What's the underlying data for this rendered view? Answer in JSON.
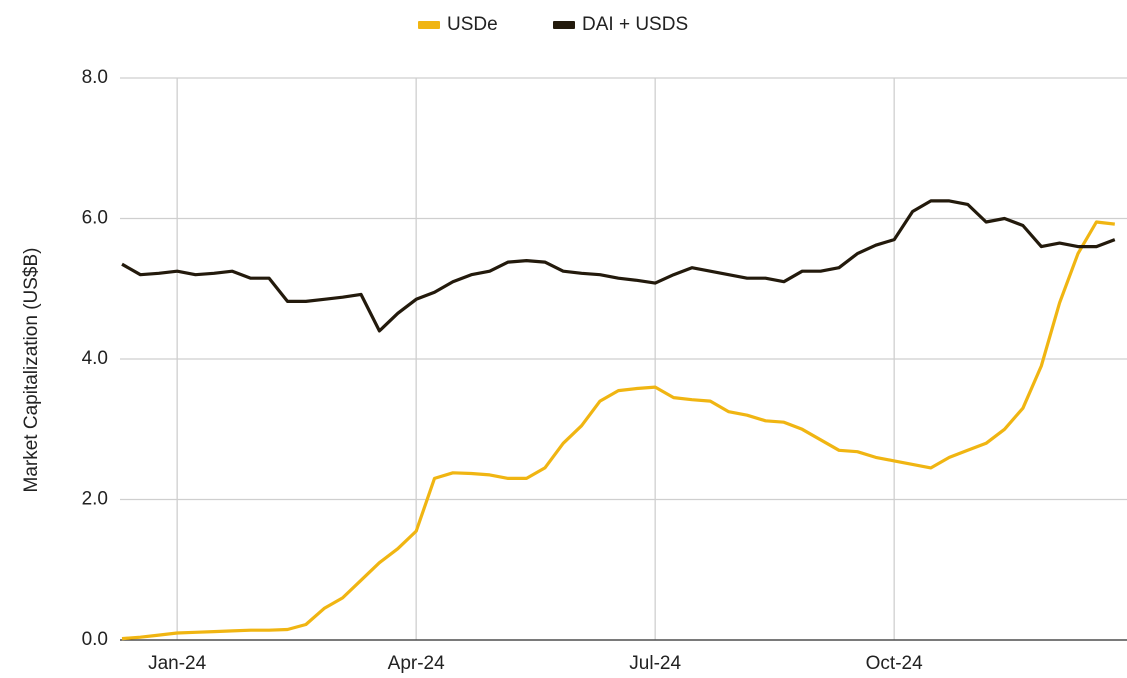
{
  "chart_data": {
    "type": "line",
    "y_label": "Market Capitalization (US$B)",
    "categories": [
      null,
      null,
      null,
      "Jan-24",
      null,
      null,
      null,
      null,
      null,
      null,
      null,
      null,
      null,
      null,
      null,
      null,
      "Apr-24",
      null,
      null,
      null,
      null,
      null,
      null,
      null,
      null,
      null,
      null,
      null,
      null,
      "Jul-24",
      null,
      null,
      null,
      null,
      null,
      null,
      null,
      null,
      null,
      null,
      null,
      null,
      "Oct-24",
      null,
      null,
      null,
      null,
      null,
      null,
      null,
      null,
      null,
      null,
      null,
      null
    ],
    "series": [
      {
        "name": "USDe",
        "color": "#f0b512",
        "values": [
          0.02,
          0.04,
          0.07,
          0.1,
          0.11,
          0.12,
          0.13,
          0.14,
          0.14,
          0.15,
          0.22,
          0.45,
          0.6,
          0.85,
          1.1,
          1.3,
          1.55,
          2.3,
          2.38,
          2.37,
          2.35,
          2.3,
          2.3,
          2.45,
          2.8,
          3.05,
          3.4,
          3.55,
          3.58,
          3.6,
          3.45,
          3.42,
          3.4,
          3.25,
          3.2,
          3.12,
          3.1,
          3.0,
          2.85,
          2.7,
          2.68,
          2.6,
          2.55,
          2.5,
          2.45,
          2.6,
          2.7,
          2.8,
          3.0,
          3.3,
          3.9,
          4.8,
          5.5,
          5.95,
          5.92
        ]
      },
      {
        "name": "DAI + USDS",
        "color": "#231a0c",
        "values": [
          5.35,
          5.2,
          5.22,
          5.25,
          5.2,
          5.22,
          5.25,
          5.15,
          5.15,
          4.82,
          4.82,
          4.85,
          4.88,
          4.92,
          4.4,
          4.65,
          4.85,
          4.95,
          5.1,
          5.2,
          5.25,
          5.38,
          5.4,
          5.38,
          5.25,
          5.22,
          5.2,
          5.15,
          5.12,
          5.08,
          5.2,
          5.3,
          5.25,
          5.2,
          5.15,
          5.15,
          5.1,
          5.25,
          5.25,
          5.3,
          5.5,
          5.62,
          5.7,
          6.1,
          6.25,
          6.25,
          6.2,
          5.95,
          6.0,
          5.9,
          5.6,
          5.65,
          5.6,
          5.6,
          5.7
        ]
      }
    ],
    "ylim": [
      0,
      8
    ],
    "yticks": [
      {
        "value": 0,
        "label": "0.0"
      },
      {
        "value": 2,
        "label": "2.0"
      },
      {
        "value": 4,
        "label": "4.0"
      },
      {
        "value": 6,
        "label": "6.0"
      },
      {
        "value": 8,
        "label": "8.0"
      }
    ],
    "grid": true,
    "legend": "top"
  }
}
